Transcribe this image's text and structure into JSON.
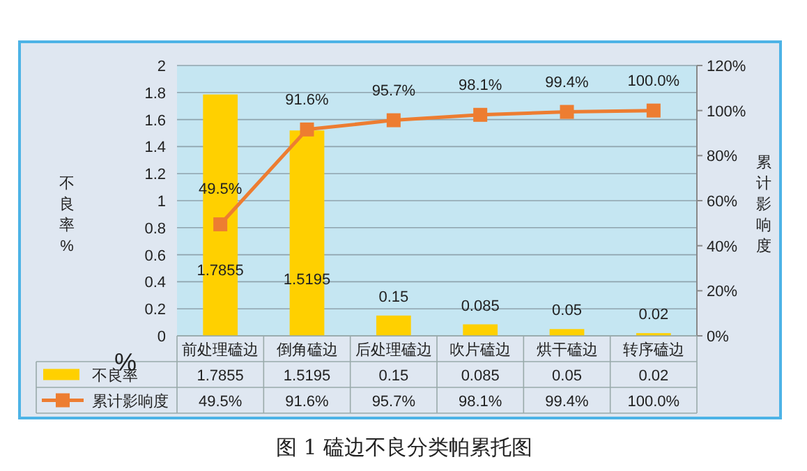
{
  "chart_data": {
    "type": "bar",
    "title": "图 1  磕边不良分类帕累托图",
    "ylabel": "不良率%",
    "y2label": "累计影响度",
    "annotations": [
      "%"
    ],
    "categories": [
      "前处理磕边",
      "倒角磕边",
      "后处理磕边",
      "吹片磕边",
      "烘干磕边",
      "转序磕边"
    ],
    "series": [
      {
        "name": "不良率",
        "color": "#ffd000",
        "values": [
          1.7855,
          1.5195,
          0.15,
          0.085,
          0.05,
          0.02
        ],
        "value_labels": [
          "1.7855",
          "1.5195",
          "0.15",
          "0.085",
          "0.05",
          "0.02"
        ]
      },
      {
        "name": "累计影响度",
        "type": "line",
        "axis": "y2",
        "color": "#ed7d31",
        "marker": "square",
        "values": [
          49.5,
          91.6,
          95.7,
          98.1,
          99.4,
          100.0
        ],
        "value_labels": [
          "49.5%",
          "91.6%",
          "95.7%",
          "98.1%",
          "99.4%",
          "100.0%"
        ]
      }
    ],
    "ylim": [
      0,
      2
    ],
    "yticks": [
      0,
      0.2,
      0.4,
      0.6,
      0.8,
      1,
      1.2,
      1.4,
      1.6,
      1.8,
      2
    ],
    "y2lim": [
      0,
      120
    ],
    "y2ticks": [
      {
        "value": 0,
        "label": "0%"
      },
      {
        "value": 20,
        "label": "20%"
      },
      {
        "value": 40,
        "label": "40%"
      },
      {
        "value": 60,
        "label": "60%"
      },
      {
        "value": 80,
        "label": "80%"
      },
      {
        "value": 100,
        "label": "100%"
      },
      {
        "value": 120,
        "label": "120%"
      }
    ],
    "grid": "y",
    "legend": "bottom left"
  }
}
